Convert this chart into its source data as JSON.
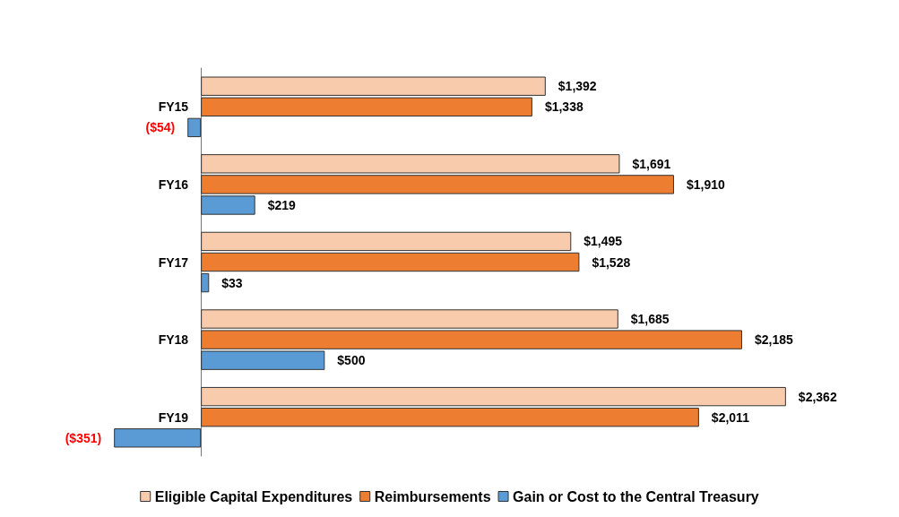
{
  "chart_data": {
    "type": "bar",
    "orientation": "horizontal",
    "categories": [
      "FY15",
      "FY16",
      "FY17",
      "FY18",
      "FY19"
    ],
    "series": [
      {
        "name": "Eligible Capital Expenditures",
        "color": "#f8cbad",
        "values": [
          1392,
          1691,
          1495,
          1685,
          2362
        ],
        "value_labels": [
          "$1,392",
          "$1,691",
          "$1,495",
          "$1,685",
          "$2,362"
        ]
      },
      {
        "name": "Reimbursements",
        "color": "#ed7d31",
        "values": [
          1338,
          1910,
          1528,
          2185,
          2011
        ],
        "value_labels": [
          "$1,338",
          "$1,910",
          "$1,528",
          "$2,185",
          "$2,011"
        ]
      },
      {
        "name": "Gain or Cost to the Central Treasury",
        "color": "#5b9bd5",
        "values": [
          -54,
          219,
          33,
          500,
          -351
        ],
        "value_labels": [
          "($54)",
          "$219",
          "$33",
          "$500",
          "($351)"
        ]
      }
    ],
    "legend": "bottom"
  }
}
